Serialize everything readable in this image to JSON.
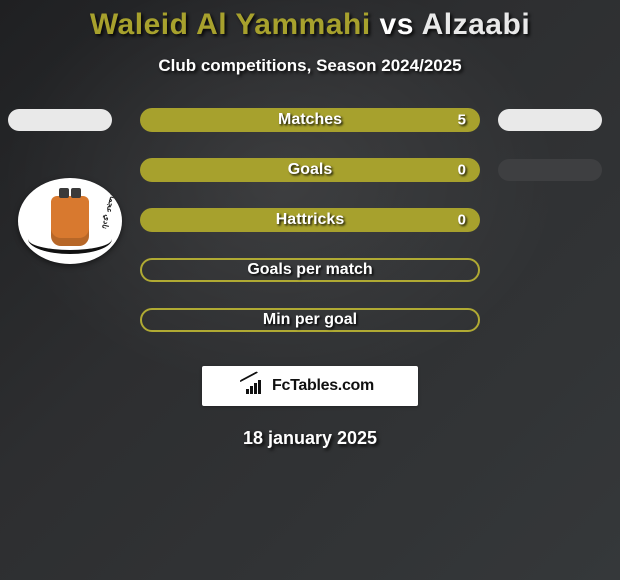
{
  "title": {
    "player1": "Waleid Al Yammahi",
    "vs": "vs",
    "player2": "Alzaabi",
    "color_p1": "#a7a12d",
    "color_vs": "#ffffff",
    "color_p2": "#e9e9e9"
  },
  "subtitle": "Club competitions, Season 2024/2025",
  "colors": {
    "accent": "#a7a12d",
    "accent_border": "#b0aa33",
    "side_pill": "#e9e9e9",
    "side_pill_dark": "#3e3f41",
    "background": "#2a2b2d",
    "text": "#ffffff"
  },
  "rows_style": {
    "pill_width": 340,
    "pill_height": 24,
    "pill_radius": 14,
    "label_fontsize": 16,
    "value_fontsize": 15,
    "gap": 26
  },
  "stats": [
    {
      "label": "Matches",
      "value": "5",
      "filled": true,
      "show_left": true,
      "show_right": true,
      "right_dark": false
    },
    {
      "label": "Goals",
      "value": "0",
      "filled": true,
      "show_left": false,
      "show_right": true,
      "right_dark": true
    },
    {
      "label": "Hattricks",
      "value": "0",
      "filled": true,
      "show_left": false,
      "show_right": false,
      "right_dark": false
    },
    {
      "label": "Goals per match",
      "value": "",
      "filled": false,
      "show_left": false,
      "show_right": false,
      "right_dark": false
    },
    {
      "label": "Min per goal",
      "value": "",
      "filled": false,
      "show_left": false,
      "show_right": false,
      "right_dark": false
    }
  ],
  "club_badge": {
    "visible": true,
    "bg": "#ffffff",
    "shape_color": "#d8792f",
    "text": "نادي عجمان"
  },
  "watermark": {
    "icon": "bar-chart-icon",
    "text": "FcTables.com",
    "bg": "#ffffff",
    "text_color": "#111111"
  },
  "date": "18 january 2025"
}
